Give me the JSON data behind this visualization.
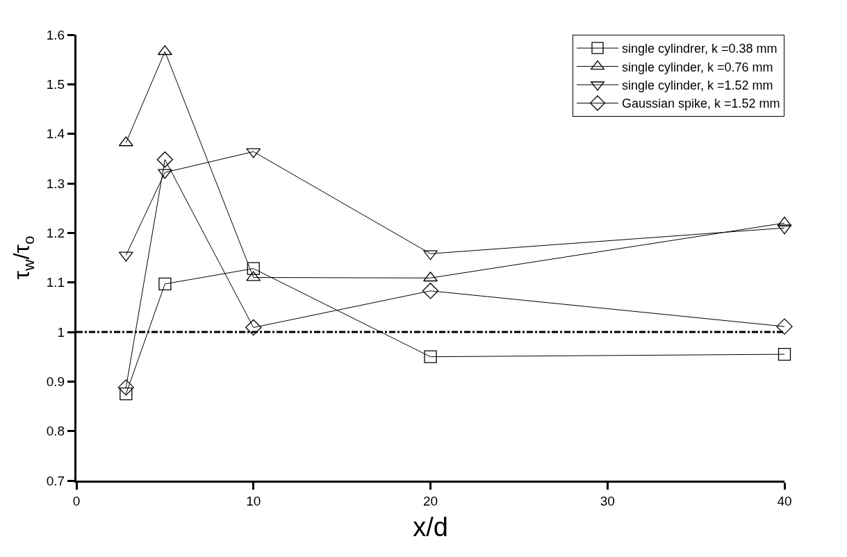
{
  "chart_data": {
    "type": "line",
    "xlabel": "x/d",
    "ylabel": "τ$_{w}$/τ$_{o}$",
    "x": [
      2.8,
      5,
      10,
      20,
      40
    ],
    "series": [
      {
        "name": "single cylindrer, k =0.38 mm",
        "color": "#000000",
        "marker": "square",
        "values": [
          0.875,
          1.097,
          1.128,
          0.95,
          0.955
        ]
      },
      {
        "name": "single cylinder, k =0.76 mm",
        "color": "#000000",
        "marker": "triangle",
        "values": [
          1.382,
          1.566,
          1.11,
          1.109,
          1.22
        ]
      },
      {
        "name": "single cylinder, k =1.52 mm",
        "color": "#000000",
        "marker": "triangle-down",
        "values": [
          1.155,
          1.322,
          1.364,
          1.158,
          1.21
        ]
      },
      {
        "name": "Gaussian spike, k =1.52 mm",
        "color": "#000000",
        "marker": "diamond",
        "values": [
          0.888,
          1.348,
          1.009,
          1.083,
          1.011
        ]
      }
    ],
    "xlim": [
      0,
      40
    ],
    "xticks": [
      0,
      10,
      20,
      30,
      40
    ],
    "ylim": [
      0.7,
      1.6
    ],
    "yticks": [
      0.7,
      0.8,
      0.9,
      1,
      1.1,
      1.2,
      1.3,
      1.4,
      1.5,
      1.6
    ],
    "ref_lines": [
      {
        "axis": "y",
        "value": 1,
        "color": "#000000",
        "line_style": "dashdot"
      }
    ],
    "legend": "top right",
    "line_style": "solid"
  }
}
